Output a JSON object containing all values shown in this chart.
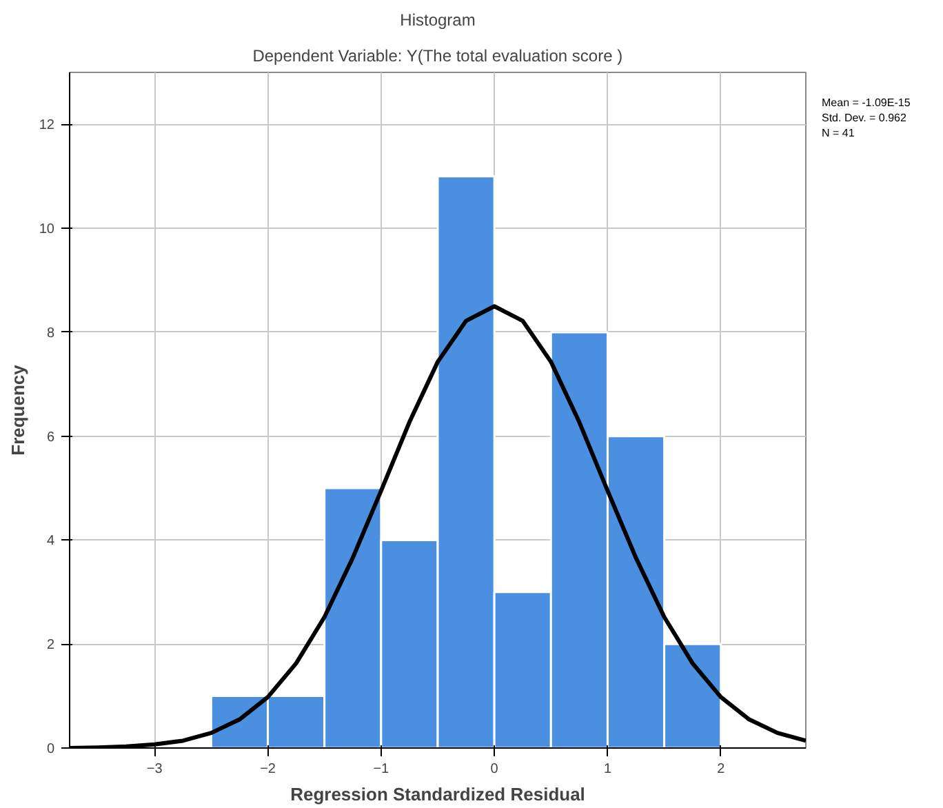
{
  "chart_data": {
    "type": "histogram",
    "title": "Histogram",
    "subtitle": "Dependent Variable: Y(The total evaluation score )",
    "xlabel": "Regression Standardized Residual",
    "ylabel": "Frequency",
    "bins": [
      -2.5,
      -2.0,
      -1.5,
      -1.0,
      -0.5,
      0.0,
      0.5,
      1.0,
      1.5,
      2.0
    ],
    "values": [
      1,
      1,
      5,
      4,
      11,
      3,
      8,
      6,
      2
    ],
    "color": "#4a8fe0",
    "series": [
      {
        "type": "line",
        "color": "#000000",
        "x": [
          -3.75,
          -3.5,
          -3.25,
          -3.0,
          -2.75,
          -2.5,
          -2.25,
          -2.0,
          -1.75,
          -1.5,
          -1.25,
          -1.0,
          -0.75,
          -0.5,
          -0.25,
          0.0,
          0.25,
          0.5,
          0.75,
          1.0,
          1.25,
          1.5,
          1.75,
          2.0,
          2.25,
          2.5,
          2.75
        ],
        "values": [
          0.0,
          0.01,
          0.03,
          0.07,
          0.14,
          0.29,
          0.55,
          0.98,
          1.63,
          2.52,
          3.66,
          4.95,
          6.27,
          7.43,
          8.22,
          8.5,
          8.22,
          7.43,
          6.27,
          4.95,
          3.66,
          2.52,
          1.63,
          0.98,
          0.55,
          0.29,
          0.14
        ]
      }
    ],
    "xlim": [
      -3.75,
      2.75
    ],
    "ylim": [
      0,
      13
    ],
    "xticks": [
      -3,
      -2,
      -1,
      0,
      1,
      2
    ],
    "yticks": [
      0,
      2,
      4,
      6,
      8,
      10,
      12
    ],
    "grid": true,
    "annotations": [
      "Mean = -1.09E-15",
      "Std. Dev. = 0.962",
      "N = 41"
    ]
  }
}
